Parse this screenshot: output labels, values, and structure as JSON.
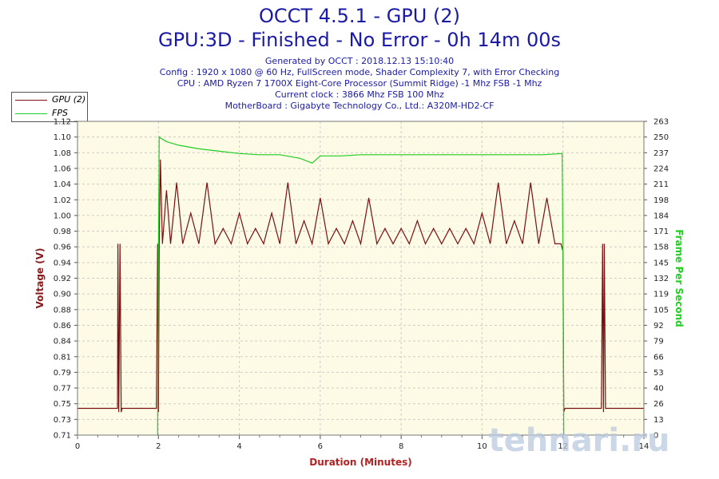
{
  "header": {
    "title": "OCCT 4.5.1 - GPU (2)",
    "subtitle": "GPU:3D - Finished - No Error - 0h 14m 00s",
    "info_lines": [
      "Generated by OCCT : 2018.12.13 15:10:40",
      "Config : 1920 x 1080 @ 60 Hz, FullScreen mode, Shader Complexity 7, with Error Checking",
      "CPU : AMD Ryzen 7 1700X Eight-Core Processor (Summit Ridge) -1 Mhz FSB -1 Mhz",
      "Current clock : 3866 Mhz FSB 100 Mhz",
      "MotherBoard : Gigabyte Technology Co., Ltd.: A320M-HD2-CF"
    ]
  },
  "legend": {
    "entries": [
      {
        "label": "GPU (2)",
        "color": "#7a1010"
      },
      {
        "label": "FPS",
        "color": "#22cc22"
      }
    ]
  },
  "watermark": "tehnari.ru",
  "colors": {
    "plot_bg": "#fdfbe6",
    "grid": "#cccccc",
    "voltage": "#7a1010",
    "fps": "#22cc22",
    "axis_label_left": "#8b1a1a",
    "axis_label_bottom": "#b22222",
    "axis_label_right": "#22cc22",
    "title": "#1a1aa6"
  },
  "chart_data": {
    "type": "line",
    "xlabel": "Duration (Minutes)",
    "ylabel": "Voltage (V)",
    "y2label": "Frame Per Second",
    "xlim": [
      0,
      14
    ],
    "ylim": [
      0.71,
      1.12
    ],
    "y2lim": [
      0,
      263
    ],
    "x_ticks": [
      "0",
      "2",
      "4",
      "6",
      "8",
      "10",
      "12",
      "14"
    ],
    "y_ticks": [
      "0.71",
      "0.73",
      "0.75",
      "0.77",
      "0.79",
      "0.81",
      "0.84",
      "0.86",
      "0.88",
      "0.90",
      "0.92",
      "0.94",
      "0.96",
      "0.98",
      "1.00",
      "1.02",
      "1.04",
      "1.06",
      "1.08",
      "1.10",
      "1.12"
    ],
    "y2_ticks": [
      "0",
      "13",
      "26",
      "40",
      "53",
      "66",
      "79",
      "92",
      "105",
      "119",
      "132",
      "145",
      "158",
      "171",
      "184",
      "198",
      "211",
      "224",
      "237",
      "250",
      "263"
    ],
    "grid": true,
    "legend_position": "top-left",
    "series": [
      {
        "name": "GPU (2)",
        "axis": "left",
        "x": [
          0,
          0.99,
          1.0,
          1.02,
          1.05,
          1.08,
          1.1,
          1.95,
          1.98,
          2.0,
          2.02,
          2.05,
          2.1,
          2.2,
          2.3,
          2.45,
          2.6,
          2.8,
          3.0,
          3.2,
          3.4,
          3.6,
          3.8,
          4.0,
          4.2,
          4.4,
          4.6,
          4.8,
          5.0,
          5.2,
          5.4,
          5.6,
          5.8,
          6.0,
          6.2,
          6.4,
          6.6,
          6.8,
          7.0,
          7.2,
          7.4,
          7.6,
          7.8,
          8.0,
          8.2,
          8.4,
          8.6,
          8.8,
          9.0,
          9.2,
          9.4,
          9.6,
          9.8,
          10.0,
          10.2,
          10.4,
          10.6,
          10.8,
          11.0,
          11.2,
          11.4,
          11.6,
          11.8,
          11.95,
          12.0,
          12.02,
          12.05,
          12.08,
          12.1,
          12.95,
          12.98,
          13.0,
          13.02,
          13.05,
          13.08,
          13.1,
          14.0
        ],
        "values": [
          0.745,
          0.745,
          0.96,
          0.74,
          0.96,
          0.74,
          0.745,
          0.745,
          0.96,
          0.74,
          0.96,
          1.07,
          0.96,
          1.03,
          0.96,
          1.04,
          0.96,
          1.0,
          0.96,
          1.04,
          0.96,
          0.98,
          0.96,
          1.0,
          0.96,
          0.98,
          0.96,
          1.0,
          0.96,
          1.04,
          0.96,
          0.99,
          0.96,
          1.02,
          0.96,
          0.98,
          0.96,
          0.99,
          0.96,
          1.02,
          0.96,
          0.98,
          0.96,
          0.98,
          0.96,
          0.99,
          0.96,
          0.98,
          0.96,
          0.98,
          0.96,
          0.98,
          0.96,
          1.0,
          0.96,
          1.04,
          0.96,
          0.99,
          0.96,
          1.04,
          0.96,
          1.02,
          0.96,
          0.96,
          0.95,
          0.74,
          0.745,
          0.745,
          0.745,
          0.745,
          0.96,
          0.74,
          0.96,
          0.745,
          0.745,
          0.745,
          0.745
        ]
      },
      {
        "name": "FPS",
        "axis": "right",
        "x": [
          1.98,
          2.0,
          2.02,
          2.05,
          2.2,
          2.5,
          3.0,
          3.5,
          4.0,
          4.5,
          5.0,
          5.5,
          5.8,
          6.0,
          6.5,
          7.0,
          7.5,
          8.0,
          8.5,
          9.0,
          9.5,
          10.0,
          10.5,
          11.0,
          11.5,
          11.98,
          12.0,
          12.02
        ],
        "values": [
          0,
          150,
          250,
          249,
          246,
          243,
          240,
          238,
          236,
          235,
          235,
          232,
          228,
          234,
          234,
          235,
          235,
          235,
          235,
          235,
          235,
          235,
          235,
          235,
          235,
          236,
          150,
          0
        ]
      }
    ]
  }
}
